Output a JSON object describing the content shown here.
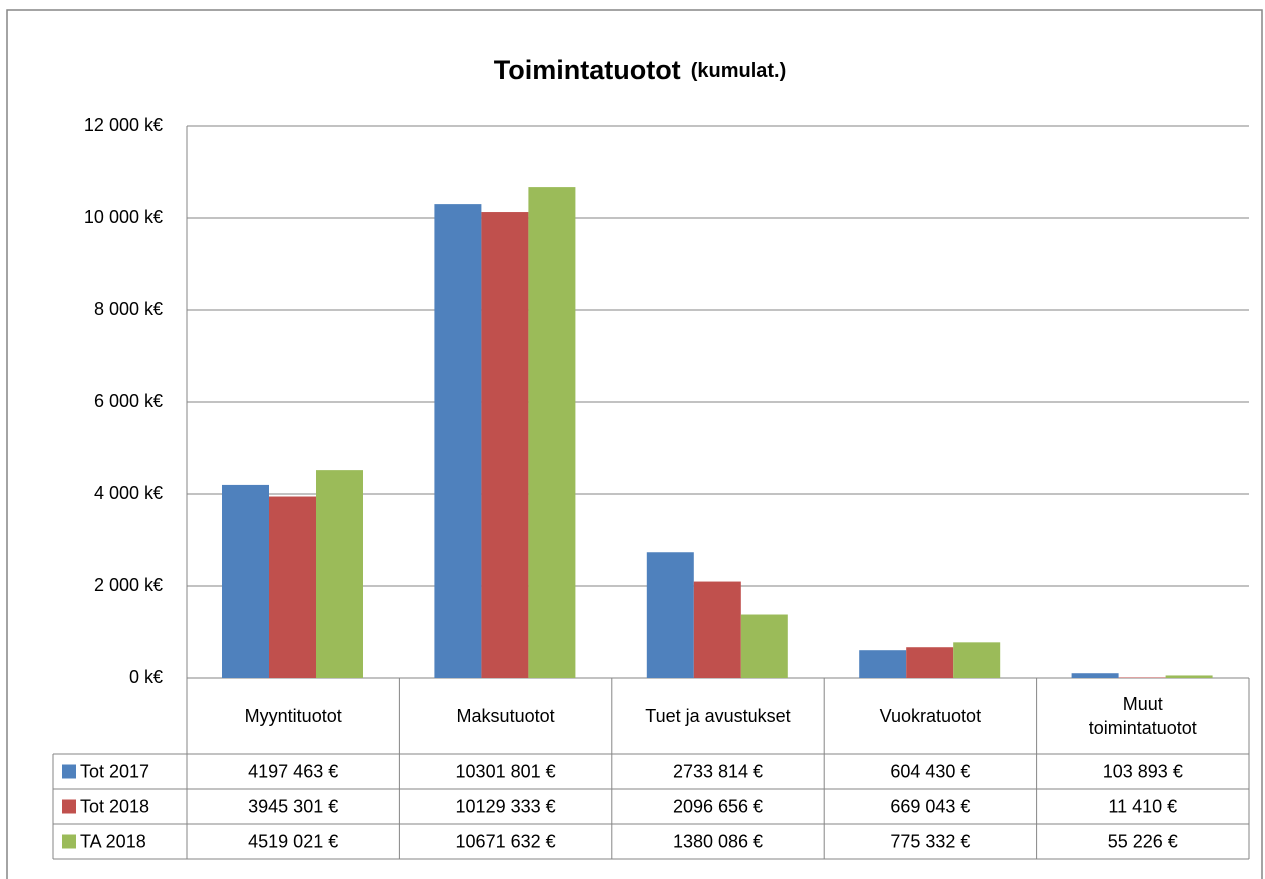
{
  "chart_data": {
    "type": "bar",
    "title": "Toimintatuotot",
    "subtitle": "(kumulat.)",
    "categories": [
      "Myyntituotot",
      "Maksutuotot",
      "Tuet ja avustukset",
      "Vuokratuotot",
      "Muut toimintatuotot"
    ],
    "series": [
      {
        "name": "Tot 2017",
        "color": "#4f81bd",
        "values": [
          4197.463,
          10301.801,
          2733.814,
          604.43,
          103.893
        ],
        "value_labels": [
          "4197 463 €",
          "10301 801 €",
          "2733 814 €",
          "604 430 €",
          "103 893 €"
        ]
      },
      {
        "name": "Tot 2018",
        "color": "#c0504d",
        "values": [
          3945.301,
          10129.333,
          2096.656,
          669.043,
          11.41
        ],
        "value_labels": [
          "3945 301 €",
          "10129 333 €",
          "2096 656 €",
          "669 043 €",
          "11 410 €"
        ]
      },
      {
        "name": "TA 2018",
        "color": "#9bbb59",
        "values": [
          4519.021,
          10671.632,
          1380.086,
          775.332,
          55.226
        ],
        "value_labels": [
          "4519 021 €",
          "10671 632 €",
          "1380 086 €",
          "775 332 €",
          "55 226 €"
        ]
      }
    ],
    "ylim": [
      0,
      12000
    ],
    "yticks": [
      {
        "value": 0,
        "label": "0 k€"
      },
      {
        "value": 2000,
        "label": "2 000 k€"
      },
      {
        "value": 4000,
        "label": "4 000 k€"
      },
      {
        "value": 6000,
        "label": "6 000 k€"
      },
      {
        "value": 8000,
        "label": "8 000 k€"
      },
      {
        "value": 10000,
        "label": "10 000 k€"
      },
      {
        "value": 12000,
        "label": "12 000 k€"
      }
    ],
    "grid": true
  }
}
